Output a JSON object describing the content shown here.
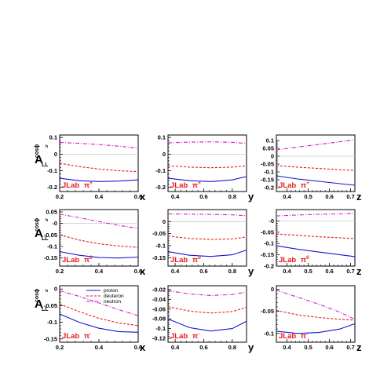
{
  "colors": {
    "proton": "#1515d6",
    "deuteron": "#e8171d",
    "neutron": "#d01fd0",
    "zero_line": "#c8c8c8",
    "tag": "#e8171d"
  },
  "legend": {
    "placement": "top-center of bottom-left panel",
    "entries": [
      {
        "name": "proton",
        "color": "#1515d6",
        "dash": "solid"
      },
      {
        "name": "deuteron",
        "color": "#e8171d",
        "dash": "dashed"
      },
      {
        "name": "neutron",
        "color": "#d01fd0",
        "dash": "dash-dot"
      }
    ]
  },
  "row_labels": [
    {
      "main": "A",
      "sub": "LL",
      "sup": "cosϕ",
      "sup2": "h"
    },
    {
      "main": "A",
      "sub": "LL",
      "sup": "cosϕ",
      "sup2": "h"
    },
    {
      "main": "A",
      "sub": "LL",
      "sup": "cosϕ",
      "sup2": "h"
    }
  ],
  "chart_data": [
    {
      "type": "line",
      "row": 0,
      "col": 0,
      "xlabel": "x",
      "tag": "JLab",
      "pion": "π",
      "pion_charge": "+",
      "xlim": [
        0.2,
        0.6
      ],
      "ylim": [
        -0.225,
        0.115
      ],
      "xticks": [
        0.2,
        0.4,
        0.6
      ],
      "xtick_labels": [
        "0.2",
        "0.4",
        "0.6"
      ],
      "yticks": [
        0.1,
        0,
        -0.1,
        -0.2
      ],
      "ytick_labels": [
        "0.1",
        "0",
        "-0.1",
        "-0.2"
      ],
      "grid": false,
      "zero_line": true,
      "series": [
        {
          "key": "neutron",
          "x": [
            0.2,
            0.3,
            0.4,
            0.5,
            0.6
          ],
          "y": [
            0.07,
            0.065,
            0.058,
            0.048,
            0.036
          ]
        },
        {
          "key": "deuteron",
          "x": [
            0.2,
            0.3,
            0.4,
            0.5,
            0.6
          ],
          "y": [
            -0.055,
            -0.075,
            -0.09,
            -0.1,
            -0.105
          ]
        },
        {
          "key": "proton",
          "x": [
            0.2,
            0.3,
            0.4,
            0.5,
            0.6
          ],
          "y": [
            -0.145,
            -0.16,
            -0.165,
            -0.162,
            -0.155
          ]
        }
      ]
    },
    {
      "type": "line",
      "row": 0,
      "col": 1,
      "xlabel": "y",
      "tag": "JLab",
      "pion": "π",
      "pion_charge": "+",
      "xlim": [
        0.35,
        0.9
      ],
      "ylim": [
        -0.225,
        0.115
      ],
      "xticks": [
        0.4,
        0.6,
        0.8
      ],
      "xtick_labels": [
        "0.4",
        "0.6",
        "0.8"
      ],
      "yticks": [
        0.1,
        0,
        -0.1,
        -0.2
      ],
      "ytick_labels": [
        "0.1",
        "0",
        "-0.1",
        "-0.2"
      ],
      "grid": false,
      "zero_line": true,
      "series": [
        {
          "key": "neutron",
          "x": [
            0.35,
            0.5,
            0.65,
            0.8,
            0.9
          ],
          "y": [
            0.068,
            0.072,
            0.074,
            0.071,
            0.064
          ]
        },
        {
          "key": "deuteron",
          "x": [
            0.35,
            0.5,
            0.65,
            0.8,
            0.9
          ],
          "y": [
            -0.07,
            -0.078,
            -0.082,
            -0.078,
            -0.07
          ]
        },
        {
          "key": "proton",
          "x": [
            0.35,
            0.5,
            0.65,
            0.8,
            0.9
          ],
          "y": [
            -0.145,
            -0.16,
            -0.165,
            -0.155,
            -0.135
          ]
        }
      ]
    },
    {
      "type": "line",
      "row": 0,
      "col": 2,
      "xlabel": "z",
      "tag": "JLab",
      "pion": "π",
      "pion_charge": "+",
      "xlim": [
        0.35,
        0.72
      ],
      "ylim": [
        -0.225,
        0.135
      ],
      "xticks": [
        0.4,
        0.5,
        0.6,
        0.7
      ],
      "xtick_labels": [
        "0.4",
        "0.5",
        "0.6",
        "0.7"
      ],
      "yticks": [
        0.1,
        0.05,
        0,
        -0.05,
        -0.1,
        -0.15,
        -0.2
      ],
      "ytick_labels": [
        "0.1",
        "0.05",
        "0",
        "-0.05",
        "-0.1",
        "-0.15",
        "-0.2"
      ],
      "grid": false,
      "zero_line": true,
      "series": [
        {
          "key": "neutron",
          "x": [
            0.35,
            0.45,
            0.55,
            0.65,
            0.72
          ],
          "y": [
            0.04,
            0.058,
            0.075,
            0.092,
            0.105
          ]
        },
        {
          "key": "deuteron",
          "x": [
            0.35,
            0.45,
            0.55,
            0.65,
            0.72
          ],
          "y": [
            -0.06,
            -0.07,
            -0.078,
            -0.086,
            -0.09
          ]
        },
        {
          "key": "proton",
          "x": [
            0.35,
            0.45,
            0.55,
            0.65,
            0.72
          ],
          "y": [
            -0.125,
            -0.145,
            -0.16,
            -0.175,
            -0.185
          ]
        }
      ]
    },
    {
      "type": "line",
      "row": 1,
      "col": 0,
      "xlabel": "x",
      "tag": "JLab",
      "pion": "π",
      "pion_charge": "0",
      "xlim": [
        0.2,
        0.6
      ],
      "ylim": [
        -0.185,
        0.06
      ],
      "xticks": [
        0.2,
        0.4,
        0.6
      ],
      "xtick_labels": [
        "0.2",
        "0.4",
        "0.6"
      ],
      "yticks": [
        0.05,
        0,
        -0.05,
        -0.1,
        -0.15
      ],
      "ytick_labels": [
        "0.05",
        "-0",
        "-0.05",
        "-0.1",
        "-0.15"
      ],
      "grid": false,
      "zero_line": true,
      "series": [
        {
          "key": "neutron",
          "x": [
            0.2,
            0.3,
            0.4,
            0.5,
            0.6
          ],
          "y": [
            0.04,
            0.025,
            0.008,
            -0.008,
            -0.022
          ]
        },
        {
          "key": "deuteron",
          "x": [
            0.2,
            0.3,
            0.4,
            0.5,
            0.6
          ],
          "y": [
            -0.05,
            -0.072,
            -0.088,
            -0.098,
            -0.104
          ]
        },
        {
          "key": "proton",
          "x": [
            0.2,
            0.3,
            0.4,
            0.5,
            0.6
          ],
          "y": [
            -0.122,
            -0.138,
            -0.148,
            -0.15,
            -0.146
          ]
        }
      ]
    },
    {
      "type": "line",
      "row": 1,
      "col": 1,
      "xlabel": "y",
      "tag": "JLab",
      "pion": "π",
      "pion_charge": "0",
      "xlim": [
        0.35,
        0.9
      ],
      "ylim": [
        -0.185,
        0.05
      ],
      "xticks": [
        0.4,
        0.6,
        0.8
      ],
      "xtick_labels": [
        "0.4",
        "0.6",
        "0.8"
      ],
      "yticks": [
        0,
        -0.05,
        -0.1,
        -0.15
      ],
      "ytick_labels": [
        "0",
        "-0.05",
        "-0.1",
        "-0.15"
      ],
      "grid": false,
      "zero_line": true,
      "series": [
        {
          "key": "neutron",
          "x": [
            0.35,
            0.5,
            0.65,
            0.8,
            0.9
          ],
          "y": [
            0.032,
            0.031,
            0.03,
            0.028,
            0.025
          ]
        },
        {
          "key": "deuteron",
          "x": [
            0.35,
            0.5,
            0.65,
            0.8,
            0.9
          ],
          "y": [
            -0.06,
            -0.07,
            -0.074,
            -0.072,
            -0.064
          ]
        },
        {
          "key": "proton",
          "x": [
            0.35,
            0.5,
            0.65,
            0.8,
            0.9
          ],
          "y": [
            -0.125,
            -0.14,
            -0.145,
            -0.138,
            -0.118
          ]
        }
      ]
    },
    {
      "type": "line",
      "row": 1,
      "col": 2,
      "xlabel": "z",
      "tag": "JLab",
      "pion": "π",
      "pion_charge": "0",
      "xlim": [
        0.35,
        0.72
      ],
      "ylim": [
        -0.2,
        0.05
      ],
      "xticks": [
        0.4,
        0.5,
        0.6,
        0.7
      ],
      "xtick_labels": [
        "0.4",
        "0.5",
        "0.6",
        "0.7"
      ],
      "yticks": [
        0,
        -0.05,
        -0.1,
        -0.15,
        -0.2
      ],
      "ytick_labels": [
        "-0",
        "-0.05",
        "-0.1",
        "-0.15",
        "-0.2"
      ],
      "grid": false,
      "zero_line": true,
      "series": [
        {
          "key": "neutron",
          "x": [
            0.35,
            0.45,
            0.55,
            0.65,
            0.72
          ],
          "y": [
            0.022,
            0.026,
            0.029,
            0.031,
            0.033
          ]
        },
        {
          "key": "deuteron",
          "x": [
            0.35,
            0.45,
            0.55,
            0.65,
            0.72
          ],
          "y": [
            -0.058,
            -0.064,
            -0.07,
            -0.075,
            -0.078
          ]
        },
        {
          "key": "proton",
          "x": [
            0.35,
            0.45,
            0.55,
            0.65,
            0.72
          ],
          "y": [
            -0.11,
            -0.125,
            -0.138,
            -0.15,
            -0.158
          ]
        }
      ]
    },
    {
      "type": "line",
      "row": 2,
      "col": 0,
      "xlabel": "x",
      "tag": "JLab",
      "pion": "π",
      "pion_charge": "-",
      "xlim": [
        0.2,
        0.6
      ],
      "ylim": [
        -0.16,
        0.01
      ],
      "xticks": [
        0.2,
        0.4,
        0.6
      ],
      "xtick_labels": [
        "0.2",
        "0.4",
        "0.6"
      ],
      "yticks": [
        0,
        -0.05,
        -0.1,
        -0.15
      ],
      "ytick_labels": [
        "0",
        "-0.05",
        "-0.1",
        "-0.15"
      ],
      "grid": false,
      "zero_line": false,
      "series": [
        {
          "key": "neutron",
          "x": [
            0.2,
            0.3,
            0.4,
            0.5,
            0.6
          ],
          "y": [
            -0.005,
            -0.022,
            -0.042,
            -0.062,
            -0.08
          ]
        },
        {
          "key": "deuteron",
          "x": [
            0.2,
            0.3,
            0.4,
            0.5,
            0.6
          ],
          "y": [
            -0.045,
            -0.068,
            -0.088,
            -0.102,
            -0.11
          ]
        },
        {
          "key": "proton",
          "x": [
            0.2,
            0.3,
            0.4,
            0.5,
            0.6
          ],
          "y": [
            -0.075,
            -0.1,
            -0.118,
            -0.128,
            -0.13
          ]
        }
      ]
    },
    {
      "type": "line",
      "row": 2,
      "col": 1,
      "xlabel": "y",
      "tag": "JLab",
      "pion": "π",
      "pion_charge": "-",
      "xlim": [
        0.35,
        0.9
      ],
      "ylim": [
        -0.128,
        -0.012
      ],
      "xticks": [
        0.4,
        0.6,
        0.8
      ],
      "xtick_labels": [
        "0.4",
        "0.6",
        "0.8"
      ],
      "yticks": [
        -0.02,
        -0.04,
        -0.06,
        -0.08,
        -0.1,
        -0.12
      ],
      "ytick_labels": [
        "-0.02",
        "-0.04",
        "-0.06",
        "-0.08",
        "-0.1",
        "-0.12"
      ],
      "grid": false,
      "zero_line": false,
      "series": [
        {
          "key": "neutron",
          "x": [
            0.35,
            0.5,
            0.65,
            0.8,
            0.9
          ],
          "y": [
            -0.022,
            -0.029,
            -0.032,
            -0.03,
            -0.025
          ]
        },
        {
          "key": "deuteron",
          "x": [
            0.35,
            0.5,
            0.65,
            0.8,
            0.9
          ],
          "y": [
            -0.055,
            -0.064,
            -0.068,
            -0.065,
            -0.056
          ]
        },
        {
          "key": "proton",
          "x": [
            0.35,
            0.5,
            0.65,
            0.8,
            0.9
          ],
          "y": [
            -0.08,
            -0.098,
            -0.105,
            -0.1,
            -0.085
          ]
        }
      ]
    },
    {
      "type": "line",
      "row": 2,
      "col": 2,
      "xlabel": "z",
      "tag": "JLab",
      "pion": "π",
      "pion_charge": "-",
      "xlim": [
        0.35,
        0.72
      ],
      "ylim": [
        -0.12,
        0.008
      ],
      "xticks": [
        0.4,
        0.5,
        0.6,
        0.7
      ],
      "xtick_labels": [
        "0.4",
        "0.5",
        "0.6",
        "0.7"
      ],
      "yticks": [
        0,
        -0.05,
        -0.1
      ],
      "ytick_labels": [
        "0",
        "-0.05",
        "-0.1"
      ],
      "grid": false,
      "zero_line": false,
      "series": [
        {
          "key": "neutron",
          "x": [
            0.35,
            0.45,
            0.55,
            0.65,
            0.72
          ],
          "y": [
            -0.002,
            -0.018,
            -0.034,
            -0.052,
            -0.068
          ]
        },
        {
          "key": "deuteron",
          "x": [
            0.35,
            0.45,
            0.55,
            0.65,
            0.72
          ],
          "y": [
            -0.048,
            -0.058,
            -0.064,
            -0.068,
            -0.07
          ]
        },
        {
          "key": "proton",
          "x": [
            0.35,
            0.45,
            0.55,
            0.65,
            0.72
          ],
          "y": [
            -0.095,
            -0.1,
            -0.098,
            -0.09,
            -0.078
          ]
        }
      ]
    }
  ]
}
